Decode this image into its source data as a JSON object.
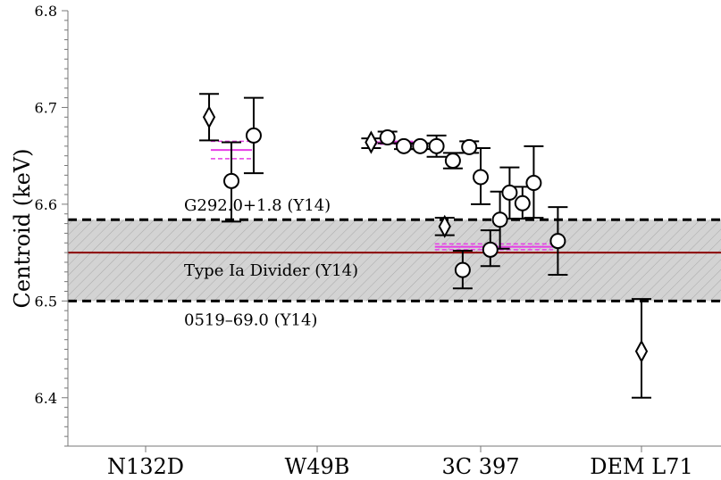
{
  "chart_data": {
    "type": "scatter",
    "ylabel": "Centroid (keV)",
    "ylim": [
      6.35,
      6.8
    ],
    "yticks": [
      {
        "value": 6.4,
        "label": "6.4"
      },
      {
        "value": 6.5,
        "label": "6.5"
      },
      {
        "value": 6.6,
        "label": "6.6"
      },
      {
        "value": 6.7,
        "label": "6.7"
      },
      {
        "value": 6.8,
        "label": "6.8"
      }
    ],
    "categories": [
      "N132D",
      "W49B",
      "3C 397",
      "DEM L71"
    ],
    "grid": false,
    "band": {
      "from": 6.5,
      "to": 6.584,
      "fill": "#d3d3d3"
    },
    "reference_lines": [
      {
        "value": 6.584,
        "label": "G292.0+1.8 (Y14)",
        "color": "#000000",
        "style": "dashed"
      },
      {
        "value": 6.55,
        "label": "Type Ia Divider (Y14)",
        "color": "#8b0000",
        "style": "solid"
      },
      {
        "value": 6.5,
        "label": "0519–69.0 (Y14)",
        "color": "#000000",
        "style": "dashed"
      }
    ],
    "means": [
      {
        "category": "N132D",
        "x_from": 0.38,
        "x_to": 0.62,
        "mean": 6.656,
        "lo": 6.647,
        "hi": 6.665,
        "color": "#e63de6"
      },
      {
        "category": "W49B",
        "x_from": 1.34,
        "x_to": 1.66,
        "mean": 6.664,
        "lo": 6.662,
        "hi": 6.665,
        "color": "#e63de6"
      },
      {
        "category": "3C 397",
        "x_from": 1.72,
        "x_to": 2.45,
        "mean": 6.556,
        "lo": 6.553,
        "hi": 6.559,
        "color": "#e63de6"
      }
    ],
    "series": [
      {
        "marker": "diamond",
        "points": [
          {
            "x": 0.37,
            "y": 6.69,
            "lo": 6.666,
            "hi": 6.714
          },
          {
            "x": 1.33,
            "y": 6.664,
            "lo": 6.658,
            "hi": 6.668
          },
          {
            "x": 1.78,
            "y": 6.577,
            "lo": 6.568,
            "hi": 6.586
          },
          {
            "x": 3.0,
            "y": 6.448,
            "lo": 6.4,
            "hi": 6.502
          }
        ]
      },
      {
        "marker": "circle",
        "points": [
          {
            "x": 0.5,
            "y": 6.624,
            "lo": 6.582,
            "hi": 6.664
          },
          {
            "x": 0.63,
            "y": 6.671,
            "lo": 6.632,
            "hi": 6.71
          },
          {
            "x": 1.43,
            "y": 6.669,
            "lo": 6.663,
            "hi": 6.675
          },
          {
            "x": 1.53,
            "y": 6.66,
            "lo": 6.657,
            "hi": 6.663
          },
          {
            "x": 1.63,
            "y": 6.66,
            "lo": 6.657,
            "hi": 6.663
          },
          {
            "x": 1.73,
            "y": 6.66,
            "lo": 6.649,
            "hi": 6.671
          },
          {
            "x": 1.83,
            "y": 6.645,
            "lo": 6.637,
            "hi": 6.653
          },
          {
            "x": 1.93,
            "y": 6.659,
            "lo": 6.653,
            "hi": 6.665
          },
          {
            "x": 1.89,
            "y": 6.532,
            "lo": 6.513,
            "hi": 6.552
          },
          {
            "x": 2.0,
            "y": 6.628,
            "lo": 6.6,
            "hi": 6.658
          },
          {
            "x": 2.06,
            "y": 6.553,
            "lo": 6.536,
            "hi": 6.573
          },
          {
            "x": 2.12,
            "y": 6.584,
            "lo": 6.554,
            "hi": 6.613
          },
          {
            "x": 2.18,
            "y": 6.612,
            "lo": 6.585,
            "hi": 6.638
          },
          {
            "x": 2.26,
            "y": 6.601,
            "lo": 6.585,
            "hi": 6.618
          },
          {
            "x": 2.33,
            "y": 6.622,
            "lo": 6.586,
            "hi": 6.66
          },
          {
            "x": 2.48,
            "y": 6.562,
            "lo": 6.527,
            "hi": 6.597
          }
        ]
      }
    ]
  }
}
